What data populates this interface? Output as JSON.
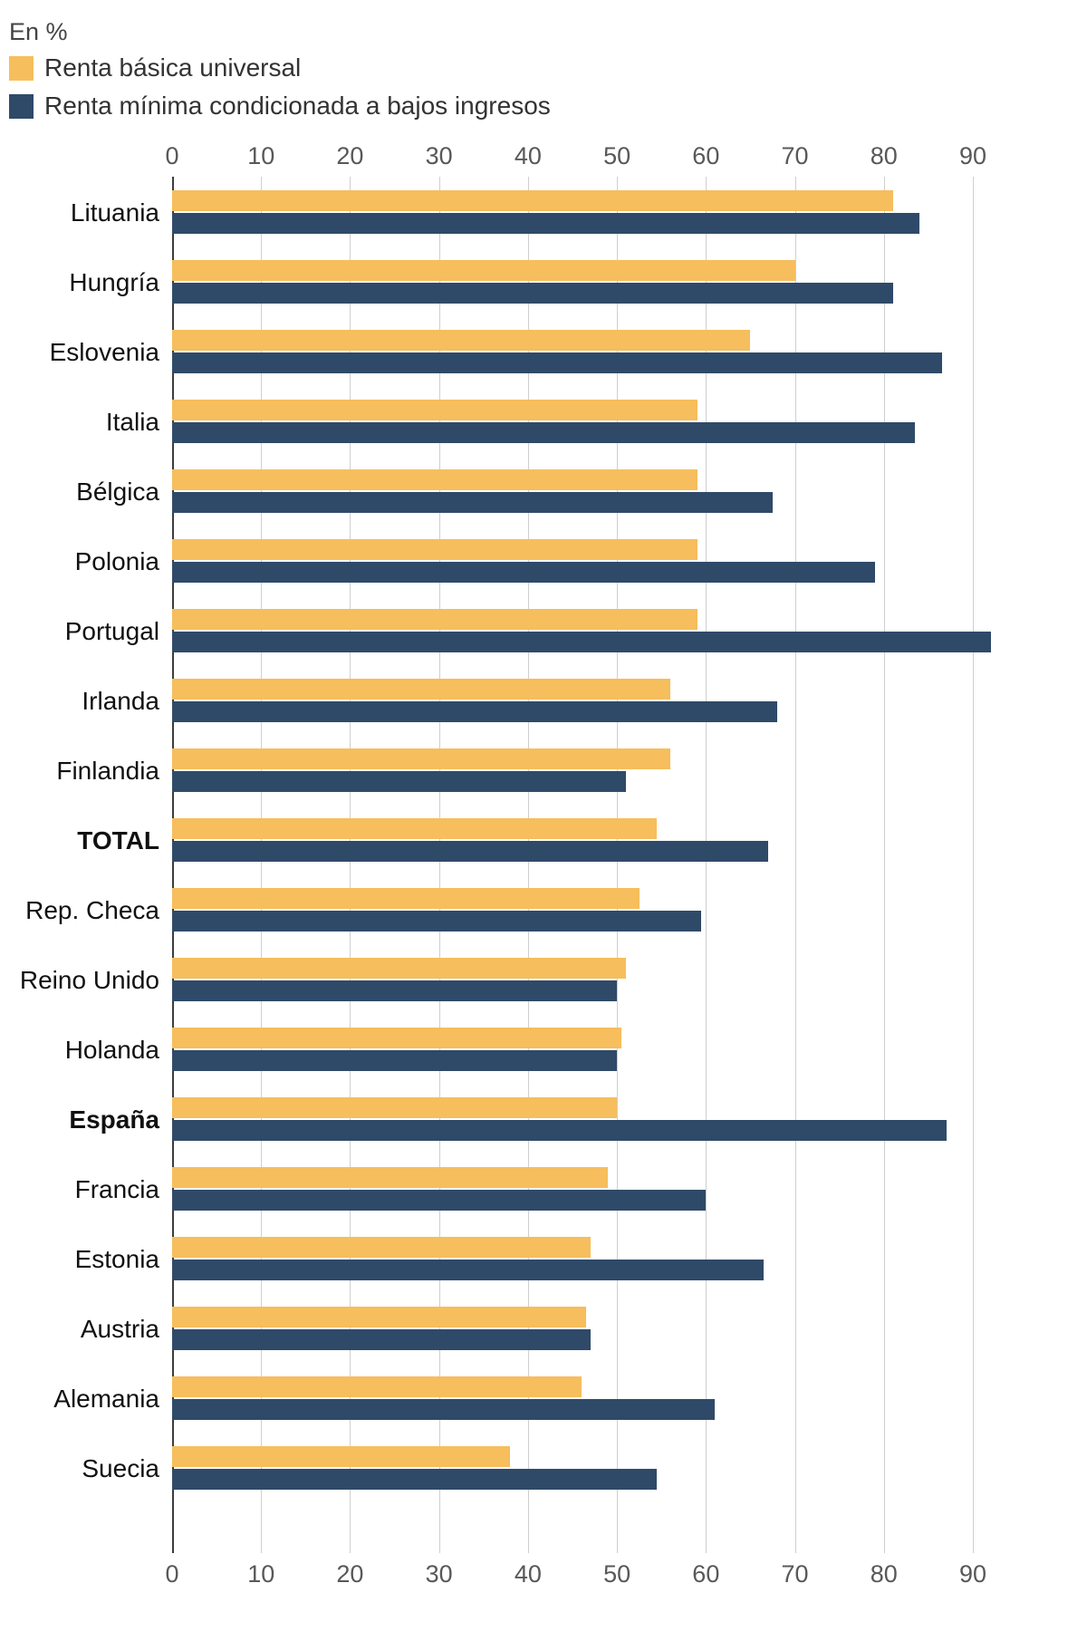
{
  "chart_data": {
    "type": "bar",
    "orientation": "horizontal",
    "title": "En %",
    "categories": [
      "Lituania",
      "Hungría",
      "Eslovenia",
      "Italia",
      "Bélgica",
      "Polonia",
      "Portugal",
      "Irlanda",
      "Finlandia",
      "TOTAL",
      "Rep. Checa",
      "Reino Unido",
      "Holanda",
      "España",
      "Francia",
      "Estonia",
      "Austria",
      "Alemania",
      "Suecia"
    ],
    "bold_categories": [
      "TOTAL",
      "España"
    ],
    "series": [
      {
        "name": "Renta básica universal",
        "color": "#F6BE5C",
        "values": [
          81,
          70,
          65,
          59,
          59,
          59,
          59,
          56,
          56,
          54.5,
          52.5,
          51,
          50.5,
          50,
          49,
          47,
          46.5,
          46,
          38
        ]
      },
      {
        "name": "Renta mínima condicionada a bajos ingresos",
        "color": "#2F4A68",
        "values": [
          84,
          81,
          86.5,
          83.5,
          67.5,
          79,
          92,
          68,
          51,
          67,
          59.5,
          50,
          50,
          87,
          60,
          66.5,
          47,
          61,
          54.5
        ]
      }
    ],
    "xlabel": "",
    "ylabel": "",
    "xlim": [
      0,
      90
    ],
    "x_ticks": [
      0,
      10,
      20,
      30,
      40,
      50,
      60,
      70,
      80,
      90
    ],
    "grid": true,
    "axis_labels_position": "top-and-bottom",
    "legend_position": "top-left",
    "gridline_color": "#cfcfcf",
    "zero_line_color": "#3d3d3d",
    "tick_label_color": "#58585a"
  }
}
